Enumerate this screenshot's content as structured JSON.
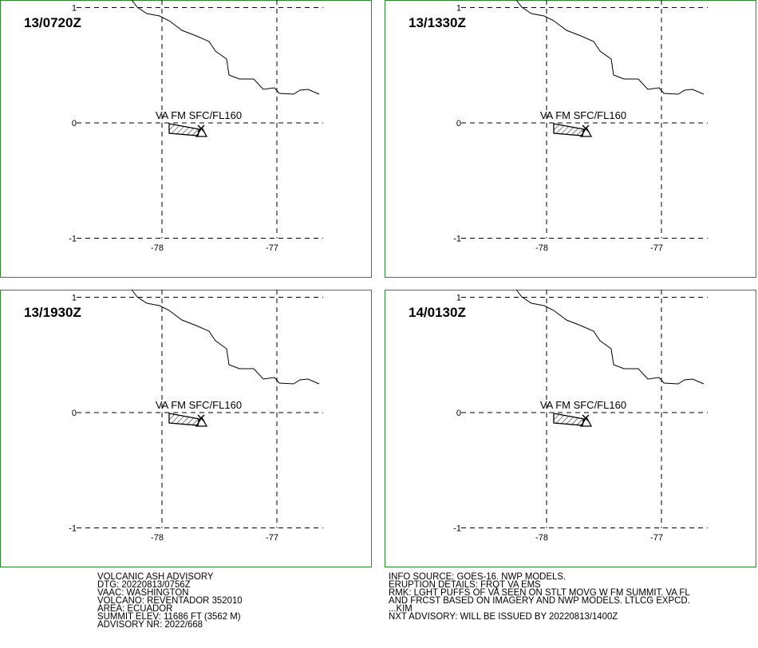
{
  "panels": [
    {
      "time": "13/0720Z",
      "label": "VA FM SFC/FL160"
    },
    {
      "time": "13/1330Z",
      "label": "VA FM SFC/FL160"
    },
    {
      "time": "13/1930Z",
      "label": "VA FM SFC/FL160"
    },
    {
      "time": "14/0130Z",
      "label": "VA FM SFC/FL160"
    }
  ],
  "lat_ticks": [
    1,
    0,
    -1
  ],
  "lon_ticks": [
    -78,
    -77
  ],
  "advisory_left": [
    "VOLCANIC ASH ADVISORY",
    "DTG: 20220813/0756Z",
    "VAAC: WASHINGTON",
    "VOLCANO: REVENTADOR 352010",
    "AREA: ECUADOR",
    "SUMMIT ELEV: 11686 FT (3562 M)",
    "ADVISORY NR: 2022/668"
  ],
  "advisory_right": [
    "INFO SOURCE: GOES-16. NWP MODELS.",
    "ERUPTION DETAILS: FRQT VA EMS",
    "RMK: LGHT PUFFS OF VA SEEN ON STLT MOVG W FM SUMMIT. VA FL",
    "AND FRCST BASED ON IMAGERY AND NWP MODELS. LTLCG EXPCD.",
    "...KIM",
    "NXT ADVISORY: WILL BE ISSUED BY 20220813/1400Z"
  ]
}
